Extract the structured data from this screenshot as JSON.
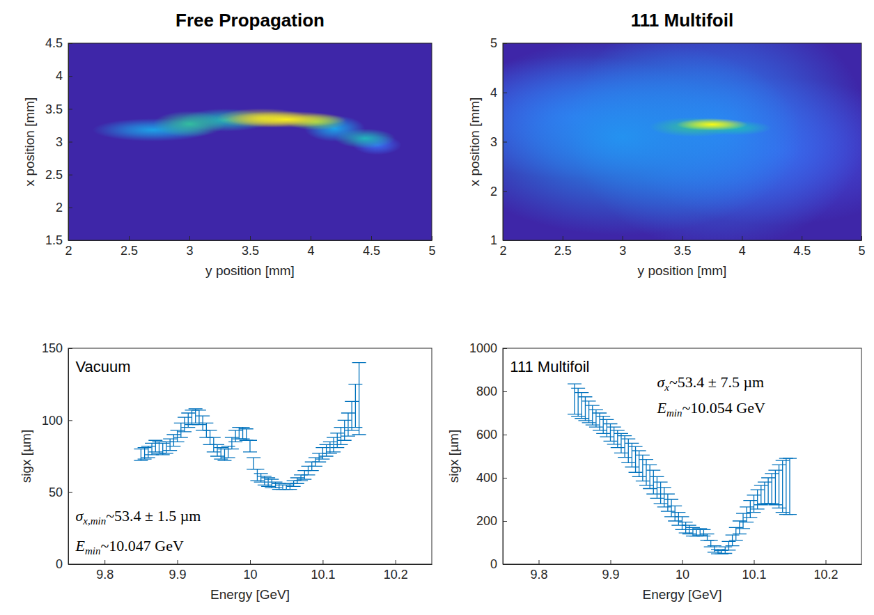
{
  "chart_data": [
    {
      "type": "image",
      "title": "Free Propagation",
      "x_label": "y position [mm]",
      "y_label": "x position [mm]",
      "xlim": [
        2,
        5
      ],
      "xticks": [
        2,
        2.5,
        3,
        3.5,
        4,
        4.5,
        5
      ],
      "ylim": [
        1.5,
        4.5
      ],
      "yticks": [
        1.5,
        2,
        2.5,
        3,
        3.5,
        4,
        4.5
      ],
      "spots": [
        {
          "y": 4.55,
          "x": 2.95,
          "sigma_y": 0.08,
          "sigma_x": 0.06,
          "intensity": 0.2
        },
        {
          "y": 2.7,
          "x": 3.18,
          "sigma_y": 0.2,
          "sigma_x": 0.07,
          "intensity": 0.35
        },
        {
          "y": 4.2,
          "x": 3.2,
          "sigma_y": 0.1,
          "sigma_x": 0.08,
          "intensity": 0.35
        },
        {
          "y": 3.3,
          "x": 3.33,
          "sigma_y": 0.15,
          "sigma_x": 0.07,
          "intensity": 0.45
        },
        {
          "y": 4.45,
          "x": 3.05,
          "sigma_y": 0.1,
          "sigma_x": 0.06,
          "intensity": 0.45
        },
        {
          "y": 3.0,
          "x": 3.27,
          "sigma_y": 0.12,
          "sigma_x": 0.08,
          "intensity": 0.5
        },
        {
          "y": 4.05,
          "x": 3.3,
          "sigma_y": 0.1,
          "sigma_x": 0.05,
          "intensity": 0.6
        },
        {
          "y": 3.6,
          "x": 3.36,
          "sigma_y": 0.15,
          "sigma_x": 0.06,
          "intensity": 0.7
        },
        {
          "y": 3.8,
          "x": 3.34,
          "sigma_y": 0.2,
          "sigma_x": 0.05,
          "intensity": 0.95
        }
      ]
    },
    {
      "type": "image",
      "title": "111 Multifoil",
      "x_label": "y position [mm]",
      "y_label": "x position [mm]",
      "xlim": [
        2,
        5
      ],
      "xticks": [
        2,
        2.5,
        3,
        3.5,
        4,
        4.5,
        5
      ],
      "ylim": [
        1,
        5
      ],
      "yticks": [
        1,
        2,
        3,
        4,
        5
      ],
      "spots": [
        {
          "y": 4.3,
          "x": 2.8,
          "sigma_y": 0.5,
          "sigma_x": 0.6,
          "intensity": 0.12
        },
        {
          "y": 2.6,
          "x": 3.5,
          "sigma_y": 0.5,
          "sigma_x": 0.5,
          "intensity": 0.15
        },
        {
          "y": 3.8,
          "x": 3.3,
          "sigma_y": 0.5,
          "sigma_x": 1.0,
          "intensity": 0.25
        },
        {
          "y": 3.0,
          "x": 3.1,
          "sigma_y": 0.6,
          "sigma_x": 0.8,
          "intensity": 0.3
        },
        {
          "y": 3.95,
          "x": 3.28,
          "sigma_y": 0.12,
          "sigma_x": 0.06,
          "intensity": 0.45
        },
        {
          "y": 3.6,
          "x": 3.3,
          "sigma_y": 0.15,
          "sigma_x": 0.08,
          "intensity": 0.5
        },
        {
          "y": 3.75,
          "x": 3.35,
          "sigma_y": 0.12,
          "sigma_x": 0.05,
          "intensity": 1.0
        }
      ]
    },
    {
      "type": "errorbar",
      "x_label": "Energy [GeV]",
      "y_label": "sigx [µm]",
      "color": "#0072bd",
      "xlim": [
        9.75,
        10.25
      ],
      "xticks": [
        9.8,
        9.9,
        10,
        10.1,
        10.2
      ],
      "ylim": [
        0,
        150
      ],
      "yticks": [
        0,
        50,
        100,
        150
      ],
      "annotations": [
        {
          "text": "Vacuum"
        },
        {
          "symbol": "σ",
          "subscript": "x,min",
          "text": "~53.4 ± 1.5 µm"
        },
        {
          "symbol": "E",
          "subscript": "min",
          "text": "~10.047 GeV"
        }
      ],
      "x": [
        9.85,
        9.855,
        9.86,
        9.865,
        9.87,
        9.875,
        9.88,
        9.885,
        9.89,
        9.895,
        9.9,
        9.905,
        9.91,
        9.915,
        9.92,
        9.925,
        9.93,
        9.935,
        9.94,
        9.945,
        9.95,
        9.955,
        9.96,
        9.965,
        9.97,
        9.975,
        9.98,
        9.985,
        9.99,
        9.995,
        10,
        10.005,
        10.01,
        10.015,
        10.02,
        10.025,
        10.03,
        10.035,
        10.04,
        10.045,
        10.05,
        10.055,
        10.06,
        10.065,
        10.07,
        10.075,
        10.08,
        10.085,
        10.09,
        10.095,
        10.1,
        10.105,
        10.11,
        10.115,
        10.12,
        10.125,
        10.13,
        10.135,
        10.14,
        10.145,
        10.15
      ],
      "values": [
        76,
        77,
        78,
        80,
        82,
        81,
        80,
        81,
        83,
        86,
        89,
        93,
        97,
        100,
        102,
        103,
        102,
        98,
        93,
        88,
        83,
        79,
        77,
        76,
        78,
        84,
        89,
        91,
        91,
        90,
        82,
        70,
        62,
        60,
        58,
        57,
        56,
        55,
        54,
        53.5,
        53.5,
        54,
        56,
        58,
        60,
        62,
        65,
        68,
        71,
        74,
        77,
        79,
        81,
        83,
        86,
        89,
        93,
        97,
        103,
        110,
        115
      ],
      "errors": [
        4,
        4,
        4,
        4,
        4,
        4,
        4,
        4,
        4,
        4,
        4,
        5,
        5,
        5,
        5,
        5,
        5,
        5,
        5,
        5,
        5,
        4,
        4,
        4,
        4,
        4,
        4,
        4,
        4,
        4,
        4,
        4,
        4,
        3,
        3,
        3,
        3,
        2,
        2,
        1.5,
        1.5,
        2,
        2,
        2,
        2,
        3,
        3,
        3,
        3,
        3,
        4,
        4,
        4,
        5,
        5,
        6,
        7,
        8,
        10,
        15,
        25
      ]
    },
    {
      "type": "errorbar",
      "x_label": "Energy [GeV]",
      "y_label": "sigx [µm]",
      "color": "#0072bd",
      "xlim": [
        9.75,
        10.25
      ],
      "xticks": [
        9.8,
        9.9,
        10,
        10.1,
        10.2
      ],
      "ylim": [
        0,
        1000
      ],
      "yticks": [
        0,
        200,
        400,
        600,
        800,
        1000
      ],
      "annotations": [
        {
          "text": "111 Multifoil"
        },
        {
          "symbol": "σ",
          "subscript": "x",
          "text": "~53.4 ± 7.5 µm"
        },
        {
          "symbol": "E",
          "subscript": "min",
          "text": "~10.054 GeV"
        }
      ],
      "x": [
        9.85,
        9.855,
        9.86,
        9.865,
        9.87,
        9.875,
        9.88,
        9.885,
        9.89,
        9.895,
        9.9,
        9.905,
        9.91,
        9.915,
        9.92,
        9.925,
        9.93,
        9.935,
        9.94,
        9.945,
        9.95,
        9.955,
        9.96,
        9.965,
        9.97,
        9.975,
        9.98,
        9.985,
        9.99,
        9.995,
        10,
        10.005,
        10.01,
        10.015,
        10.02,
        10.025,
        10.03,
        10.035,
        10.04,
        10.045,
        10.05,
        10.055,
        10.06,
        10.065,
        10.07,
        10.075,
        10.08,
        10.085,
        10.09,
        10.095,
        10.1,
        10.105,
        10.11,
        10.115,
        10.12,
        10.125,
        10.13,
        10.135,
        10.14,
        10.145,
        10.15
      ],
      "values": [
        765,
        750,
        735,
        720,
        705,
        690,
        675,
        660,
        645,
        630,
        610,
        595,
        580,
        560,
        545,
        525,
        505,
        485,
        465,
        445,
        425,
        405,
        380,
        355,
        330,
        310,
        285,
        260,
        235,
        210,
        190,
        170,
        160,
        150,
        145,
        150,
        145,
        125,
        95,
        70,
        58,
        55,
        65,
        85,
        110,
        140,
        170,
        200,
        230,
        255,
        280,
        300,
        320,
        330,
        340,
        350,
        355,
        360,
        360,
        360,
        360
      ],
      "errors": [
        70,
        65,
        60,
        55,
        50,
        45,
        40,
        40,
        40,
        40,
        40,
        40,
        40,
        45,
        50,
        55,
        55,
        60,
        60,
        60,
        60,
        55,
        55,
        50,
        50,
        45,
        40,
        40,
        35,
        30,
        30,
        25,
        20,
        20,
        15,
        15,
        15,
        15,
        15,
        15,
        10,
        8,
        15,
        20,
        25,
        30,
        30,
        35,
        35,
        40,
        40,
        45,
        45,
        50,
        60,
        70,
        80,
        100,
        120,
        130,
        130
      ]
    }
  ]
}
